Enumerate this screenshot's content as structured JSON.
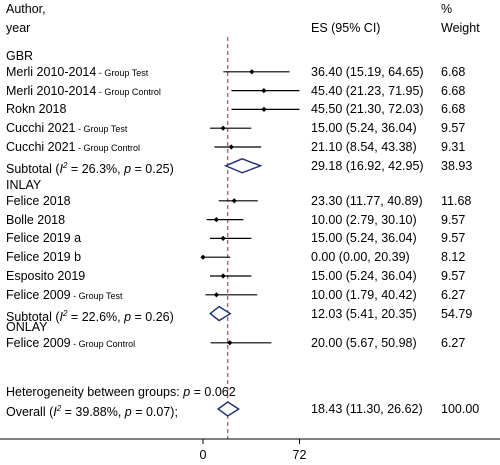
{
  "header": {
    "study_col_line1": "Author,",
    "study_col_line2": "year",
    "es_col": "ES (95% CI)",
    "weight_col_line1": "%",
    "weight_col_line2": "Weight"
  },
  "chart_data": {
    "type": "forest",
    "xlim": [
      -10,
      80
    ],
    "ticks": [
      0,
      72
    ],
    "overall_reference": 18.43,
    "groups": [
      {
        "name": "GBR",
        "studies": [
          {
            "author": "Merli 2010-2014",
            "subgroup": " - Group Test",
            "es": 36.4,
            "lo": 15.19,
            "hi": 64.65,
            "es_text": "36.40 (15.19, 64.65)",
            "weight": "6.68"
          },
          {
            "author": "Merli 2010-2014",
            "subgroup": " - Group Control",
            "es": 45.4,
            "lo": 21.23,
            "hi": 71.95,
            "es_text": "45.40 (21.23, 71.95)",
            "weight": "6.68"
          },
          {
            "author": "Rokn 2018",
            "subgroup": "",
            "es": 45.5,
            "lo": 21.3,
            "hi": 72.03,
            "es_text": "45.50 (21.30, 72.03)",
            "weight": "6.68"
          },
          {
            "author": "Cucchi 2021",
            "subgroup": " - Group Test",
            "es": 15.0,
            "lo": 5.24,
            "hi": 36.04,
            "es_text": "15.00 (5.24, 36.04)",
            "weight": "9.57"
          },
          {
            "author": "Cucchi 2021",
            "subgroup": " - Group Control",
            "es": 21.1,
            "lo": 8.54,
            "hi": 43.38,
            "es_text": "21.10 (8.54, 43.38)",
            "weight": "9.31"
          }
        ],
        "subtotal": {
          "label_pre": "Subtotal  (",
          "i2": "I",
          "label_post": " = 26.3%, ",
          "p_label": "p",
          "p_value": " = 0.25)",
          "es": 29.18,
          "lo": 16.92,
          "hi": 42.95,
          "es_text": "29.18 (16.92, 42.95)",
          "weight": "38.93"
        }
      },
      {
        "name": "INLAY",
        "studies": [
          {
            "author": "Felice 2018",
            "subgroup": "",
            "es": 23.3,
            "lo": 11.77,
            "hi": 40.89,
            "es_text": "23.30 (11.77, 40.89)",
            "weight": "11.68"
          },
          {
            "author": "Bolle 2018",
            "subgroup": "",
            "es": 10.0,
            "lo": 2.79,
            "hi": 30.1,
            "es_text": "10.00 (2.79, 30.10)",
            "weight": "9.57"
          },
          {
            "author": "Felice 2019 a",
            "subgroup": "",
            "es": 15.0,
            "lo": 5.24,
            "hi": 36.04,
            "es_text": "15.00 (5.24, 36.04)",
            "weight": "9.57"
          },
          {
            "author": "Felice 2019 b",
            "subgroup": "",
            "es": 0.0,
            "lo": 0.0,
            "hi": 20.39,
            "es_text": "0.00 (0.00, 20.39)",
            "weight": "8.12"
          },
          {
            "author": "Esposito 2019",
            "subgroup": "",
            "es": 15.0,
            "lo": 5.24,
            "hi": 36.04,
            "es_text": "15.00 (5.24, 36.04)",
            "weight": "9.57"
          },
          {
            "author": "Felice 2009",
            "subgroup": " - Group Test",
            "es": 10.0,
            "lo": 1.79,
            "hi": 40.42,
            "es_text": "10.00 (1.79, 40.42)",
            "weight": "6.27"
          }
        ],
        "subtotal": {
          "label_pre": "Subtotal  (",
          "i2": "I",
          "label_post": " = 22.6%, ",
          "p_label": "p",
          "p_value": " = 0.26)",
          "es": 12.03,
          "lo": 5.41,
          "hi": 20.35,
          "es_text": "12.03 (5.41, 20.35)",
          "weight": "54.79"
        }
      },
      {
        "name": "ONLAY",
        "studies": [
          {
            "author": "Felice 2009",
            "subgroup": " - Group Control",
            "es": 20.0,
            "lo": 5.67,
            "hi": 50.98,
            "es_text": "20.00 (5.67, 50.98)",
            "weight": "6.27"
          }
        ]
      }
    ],
    "heterogeneity": {
      "text": "Heterogeneity between groups: ",
      "p_label": "p",
      "p_value": " = 0.062"
    },
    "overall": {
      "label_pre": "Overall  (",
      "i2": "I",
      "label_post": " = 39.88%, ",
      "p_label": "p",
      "p_value": " = 0.07);",
      "es": 18.43,
      "lo": 11.3,
      "hi": 26.62,
      "es_text": "18.43 (11.30, 26.62)",
      "weight": "100.00"
    },
    "colors": {
      "diamond": "#1f2f7a",
      "reference_line": "#a0526a",
      "marker": "#000000"
    }
  }
}
